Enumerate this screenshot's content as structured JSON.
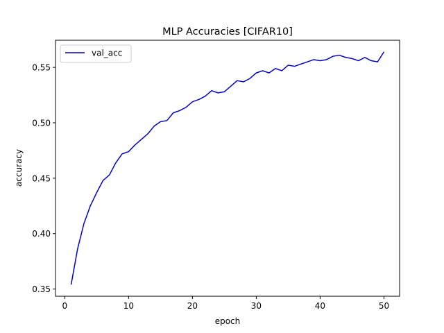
{
  "chart_data": {
    "type": "line",
    "title": "MLP Accuracies [CIFAR10]",
    "xlabel": "epoch",
    "ylabel": "accuracy",
    "xlim": [
      -1.45,
      52.45
    ],
    "ylim": [
      0.3435,
      0.5745
    ],
    "xticks": [
      0,
      10,
      20,
      30,
      40,
      50
    ],
    "yticks": [
      0.35,
      0.4,
      0.45,
      0.5,
      0.55
    ],
    "ytick_labels": [
      "0.35",
      "0.40",
      "0.45",
      "0.50",
      "0.55"
    ],
    "grid": false,
    "legend_position": "upper left",
    "series": [
      {
        "name": "val_acc",
        "color": "#0000cc",
        "x": [
          1,
          2,
          3,
          4,
          5,
          6,
          7,
          8,
          9,
          10,
          11,
          12,
          13,
          14,
          15,
          16,
          17,
          18,
          19,
          20,
          21,
          22,
          23,
          24,
          25,
          26,
          27,
          28,
          29,
          30,
          31,
          32,
          33,
          34,
          35,
          36,
          37,
          38,
          39,
          40,
          41,
          42,
          43,
          44,
          45,
          46,
          47,
          48,
          49,
          50
        ],
        "y": [
          0.354,
          0.386,
          0.409,
          0.425,
          0.437,
          0.448,
          0.453,
          0.464,
          0.472,
          0.474,
          0.48,
          0.485,
          0.49,
          0.497,
          0.501,
          0.502,
          0.509,
          0.511,
          0.514,
          0.519,
          0.521,
          0.524,
          0.529,
          0.527,
          0.528,
          0.533,
          0.538,
          0.537,
          0.54,
          0.545,
          0.547,
          0.545,
          0.549,
          0.547,
          0.552,
          0.551,
          0.553,
          0.555,
          0.557,
          0.556,
          0.557,
          0.56,
          0.561,
          0.559,
          0.558,
          0.556,
          0.559,
          0.556,
          0.555,
          0.564
        ]
      }
    ]
  }
}
